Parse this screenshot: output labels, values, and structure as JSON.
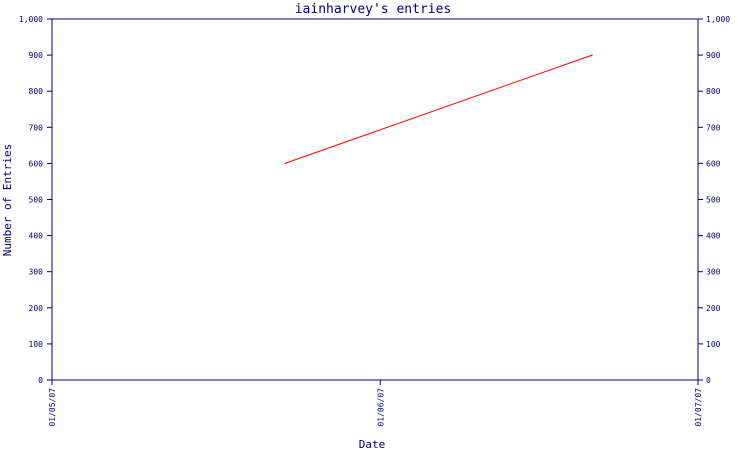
{
  "chart_data": {
    "type": "line",
    "title": "iainharvey's entries",
    "xlabel": "Date",
    "ylabel": "Number of Entries",
    "x_ticks": [
      "01/05/07",
      "01/06/07",
      "01/07/07"
    ],
    "x_domain": [
      "01/05/07",
      "01/07/07"
    ],
    "ylim": [
      0,
      1000
    ],
    "y_ticks": [
      "0",
      "100",
      "200",
      "300",
      "400",
      "500",
      "600",
      "700",
      "800",
      "900",
      "1,000"
    ],
    "grid": false,
    "legend": "none",
    "series": [
      {
        "color": "#ff0000",
        "x": [
          "01/05/07",
          "01/06/07",
          "01/07/07"
        ],
        "points": [
          {
            "x": "23/05/07",
            "y": 600
          },
          {
            "x": "21/06/07",
            "y": 900
          }
        ]
      }
    ],
    "colors": {
      "axis": "#000080",
      "text": "#000080",
      "line": "#ff0000"
    }
  }
}
